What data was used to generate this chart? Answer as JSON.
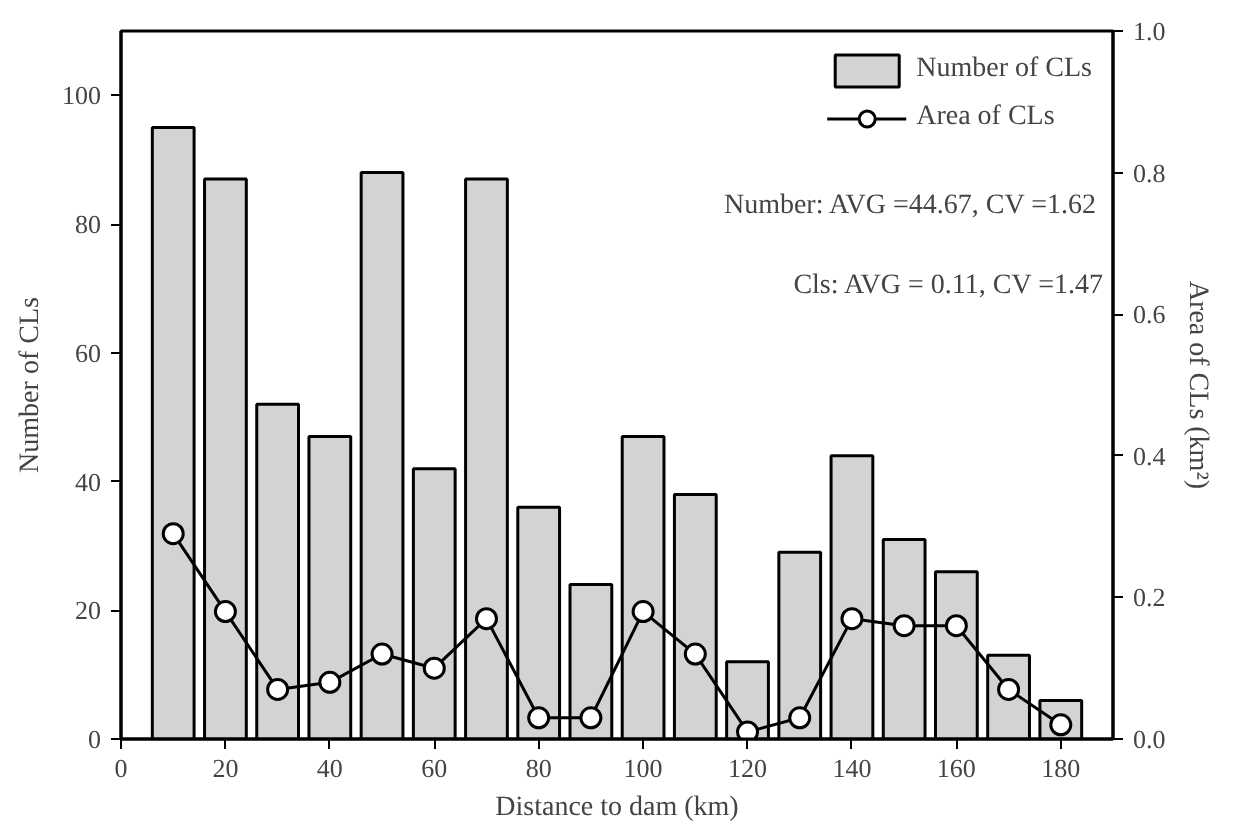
{
  "chart_data": {
    "type": "bar",
    "xlabel": "Distance to dam (km)",
    "ylabel": "Number of CLs",
    "y2label": "Area of CLs (km²)",
    "x": [
      10,
      20,
      30,
      40,
      50,
      60,
      70,
      80,
      90,
      100,
      110,
      120,
      130,
      140,
      150,
      160,
      170,
      180
    ],
    "series": [
      {
        "name": "Number of CLs",
        "color": "#d3d3d3",
        "values": [
          95,
          87,
          52,
          47,
          88,
          42,
          87,
          36,
          24,
          47,
          38,
          12,
          29,
          44,
          31,
          26,
          13,
          6
        ]
      },
      {
        "name": "Area of CLs",
        "type": "line",
        "axis": "y2",
        "color": "#000000",
        "marker": "circle",
        "values": [
          0.29,
          0.18,
          0.07,
          0.08,
          0.12,
          0.1,
          0.17,
          0.03,
          0.03,
          0.18,
          0.12,
          0.01,
          0.03,
          0.17,
          0.16,
          0.16,
          0.07,
          0.02
        ]
      }
    ],
    "xlim": [
      0,
      190
    ],
    "xticks": [
      0,
      20,
      40,
      60,
      80,
      100,
      120,
      140,
      160,
      180
    ],
    "ylim": [
      0,
      110
    ],
    "yticks": [
      0,
      20,
      40,
      60,
      80,
      100
    ],
    "y2lim": [
      0,
      1.0
    ],
    "y2ticks": [
      {
        "value": 0,
        "label": "0.0"
      },
      {
        "value": 0.2,
        "label": "0.2"
      },
      {
        "value": 0.4,
        "label": "0.4"
      },
      {
        "value": 0.6,
        "label": "0.6"
      },
      {
        "value": 0.8,
        "label": "0.8"
      },
      {
        "value": 1.0,
        "label": "1.0"
      }
    ],
    "annotations": [
      "Number: AVG  =44.67, CV =1.62",
      "Cls: AVG = 0.11, CV =1.47"
    ],
    "legend": "top right",
    "grid": false
  }
}
